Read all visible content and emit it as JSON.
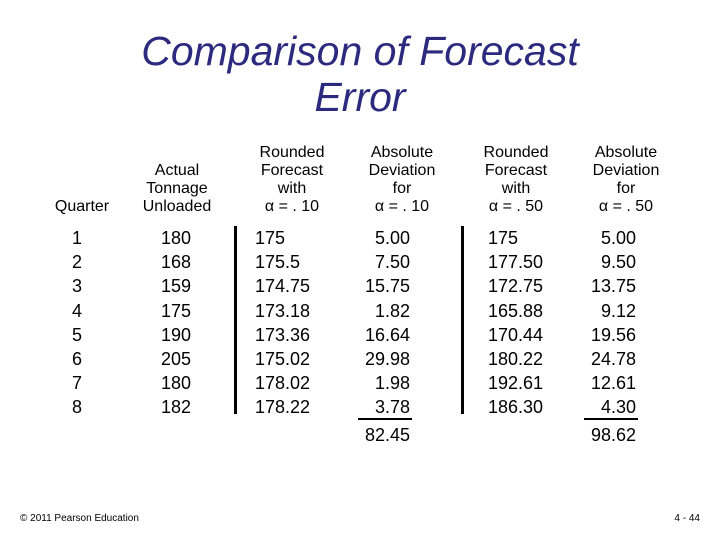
{
  "title": [
    "Comparison of Forecast",
    "Error"
  ],
  "headers": {
    "quarter": [
      "Quarter"
    ],
    "actual": [
      "Actual",
      "Tonnage",
      "Unloaded"
    ],
    "rf10": [
      "Rounded",
      "Forecast",
      "with",
      "α = . 10"
    ],
    "ad10": [
      "Absolute",
      "Deviation",
      "for",
      "α = . 10"
    ],
    "rf50": [
      "Rounded",
      "Forecast",
      "with",
      "α = . 50"
    ],
    "ad50": [
      "Absolute",
      "Deviation",
      "for",
      "α = . 50"
    ]
  },
  "columns": {
    "quarter": [
      "1",
      "2",
      "3",
      "4",
      "5",
      "6",
      "7",
      "8"
    ],
    "actual": [
      "180",
      "168",
      "159",
      "175",
      "190",
      "205",
      "180",
      "182"
    ],
    "rf10": [
      "175",
      "175.5",
      "174.75",
      "173.18",
      "173.36",
      "175.02",
      "178.02",
      "178.22"
    ],
    "ad10": [
      "5.00",
      "7.50",
      "15.75",
      "1.82",
      "16.64",
      "29.98",
      "1.98",
      "3.78"
    ],
    "rf50": [
      "175",
      "177.50",
      "172.75",
      "165.88",
      "170.44",
      "180.22",
      "192.61",
      "186.30"
    ],
    "ad50": [
      "5.00",
      "9.50",
      "13.75",
      "9.12",
      "19.56",
      "24.78",
      "12.61",
      "4.30"
    ]
  },
  "totals": {
    "ad10": "82.45",
    "ad50": "98.62"
  },
  "footer": {
    "copyright": "© 2011 Pearson Education",
    "page": "4 - 44"
  },
  "colors": {
    "title": "#2b2a7f",
    "text": "#000000",
    "background": "#ffffff"
  }
}
